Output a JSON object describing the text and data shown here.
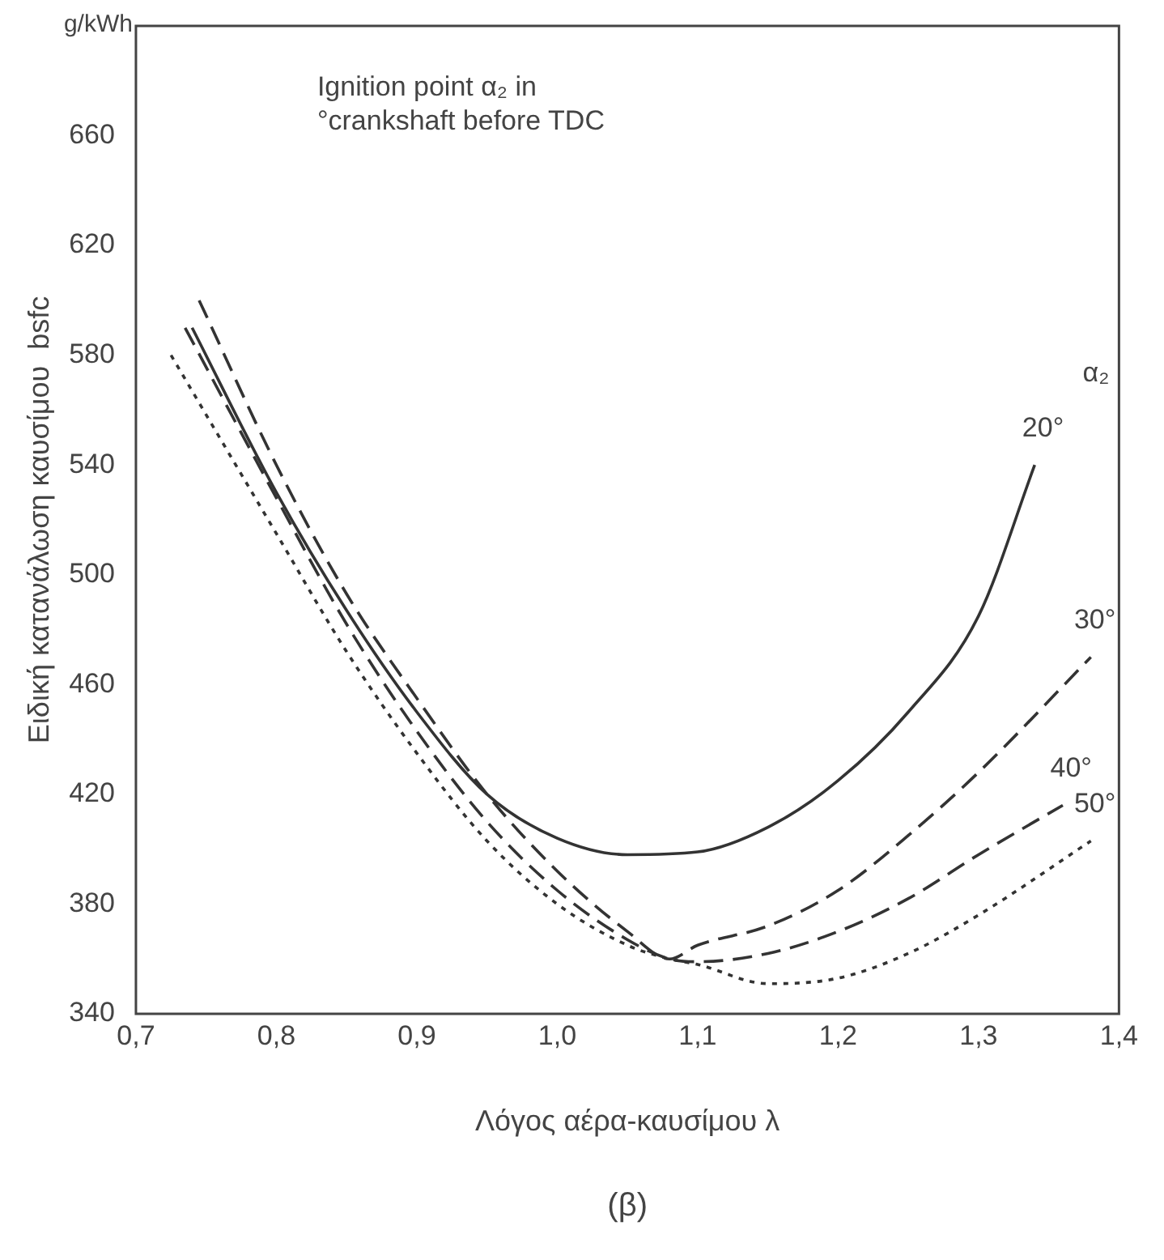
{
  "chart_data": {
    "type": "line",
    "xlabel": "Λόγος αέρα-καυσίμου λ",
    "ylabel": "Ειδική κατανάλωση καυσίμου  bsfc",
    "legend_title": "α₂",
    "annotations": [
      "g/kWh",
      "Ignition point α₂ in\n°crankshaft before TDC",
      "(β)"
    ],
    "xlim": [
      0.7,
      1.4
    ],
    "xticks": [
      {
        "value": 0.7,
        "label": "0,7"
      },
      {
        "value": 0.8,
        "label": "0,8"
      },
      {
        "value": 0.9,
        "label": "0,9"
      },
      {
        "value": 1.0,
        "label": "1,0"
      },
      {
        "value": 1.1,
        "label": "1,1"
      },
      {
        "value": 1.2,
        "label": "1,2"
      },
      {
        "value": 1.3,
        "label": "1,3"
      },
      {
        "value": 1.4,
        "label": "1,4"
      }
    ],
    "ylim": [
      340,
      700
    ],
    "yticks": [
      340,
      380,
      420,
      460,
      500,
      540,
      580,
      620,
      660
    ],
    "grid": false,
    "legend": false,
    "marker": "none",
    "series": [
      {
        "name": "20°",
        "color": "#333333",
        "line_style": "solid",
        "x": [
          0.74,
          0.8,
          0.85,
          0.9,
          0.95,
          1.0,
          1.05,
          1.1,
          1.15,
          1.2,
          1.25,
          1.3,
          1.34
        ],
        "values": [
          590,
          530,
          487,
          450,
          420,
          404,
          398,
          399,
          408,
          425,
          450,
          485,
          540
        ]
      },
      {
        "name": "30°",
        "color": "#333333",
        "line_style": "dashed",
        "x": [
          0.745,
          0.8,
          0.85,
          0.9,
          0.95,
          1.0,
          1.05,
          1.08,
          1.1,
          1.15,
          1.2,
          1.25,
          1.3,
          1.38
        ],
        "values": [
          600,
          540,
          493,
          455,
          420,
          392,
          370,
          360,
          365,
          372,
          385,
          405,
          428,
          470
        ]
      },
      {
        "name": "40°",
        "color": "#333333",
        "line_style": "dashed",
        "x": [
          0.735,
          0.8,
          0.85,
          0.9,
          0.95,
          1.0,
          1.05,
          1.08,
          1.1,
          1.15,
          1.2,
          1.25,
          1.3,
          1.36
        ],
        "values": [
          590,
          528,
          482,
          443,
          410,
          385,
          367,
          360,
          359,
          362,
          370,
          382,
          398,
          416
        ]
      },
      {
        "name": "50°",
        "color": "#333333",
        "line_style": "dotted",
        "x": [
          0.725,
          0.8,
          0.85,
          0.9,
          0.95,
          1.0,
          1.05,
          1.08,
          1.1,
          1.15,
          1.2,
          1.25,
          1.3,
          1.38
        ],
        "values": [
          580,
          515,
          472,
          435,
          403,
          380,
          365,
          360,
          358,
          351,
          353,
          362,
          376,
          403
        ]
      }
    ]
  }
}
